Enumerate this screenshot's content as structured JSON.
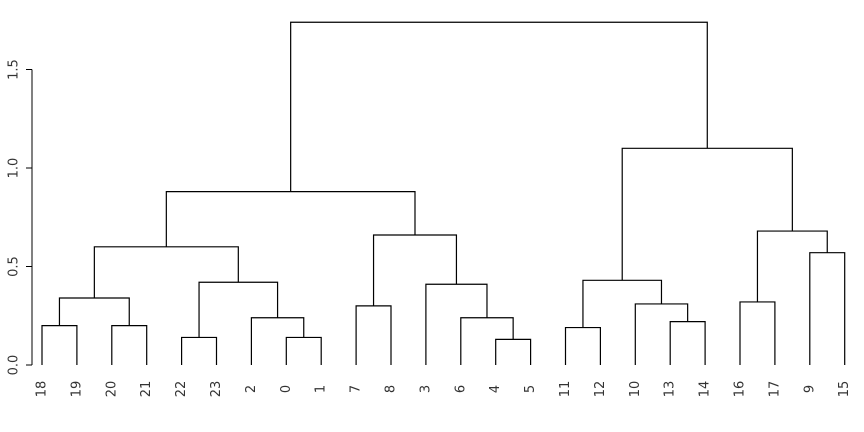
{
  "chart_data": {
    "type": "dendrogram",
    "leaf_order": [
      "18",
      "19",
      "20",
      "21",
      "22",
      "23",
      "2",
      "0",
      "1",
      "7",
      "8",
      "3",
      "6",
      "4",
      "5",
      "11",
      "12",
      "10",
      "13",
      "14",
      "16",
      "17",
      "9",
      "15"
    ],
    "merges": [
      {
        "a": "leaf:18",
        "b": "leaf:19",
        "height": 0.2
      },
      {
        "a": "leaf:20",
        "b": "leaf:21",
        "height": 0.2
      },
      {
        "a": "merge:0",
        "b": "merge:1",
        "height": 0.34
      },
      {
        "a": "leaf:22",
        "b": "leaf:23",
        "height": 0.14
      },
      {
        "a": "leaf:0",
        "b": "leaf:1",
        "height": 0.14
      },
      {
        "a": "leaf:2",
        "b": "merge:4",
        "height": 0.24
      },
      {
        "a": "merge:5",
        "b": "merge:3",
        "height": 0.42
      },
      {
        "a": "merge:2",
        "b": "merge:6",
        "height": 0.6
      },
      {
        "a": "leaf:7",
        "b": "leaf:8",
        "height": 0.3
      },
      {
        "a": "leaf:4",
        "b": "leaf:5",
        "height": 0.13
      },
      {
        "a": "leaf:6",
        "b": "merge:9",
        "height": 0.24
      },
      {
        "a": "leaf:3",
        "b": "merge:10",
        "height": 0.41
      },
      {
        "a": "merge:8",
        "b": "merge:11",
        "height": 0.66
      },
      {
        "a": "merge:7",
        "b": "merge:12",
        "height": 0.88
      },
      {
        "a": "leaf:11",
        "b": "leaf:12",
        "height": 0.19
      },
      {
        "a": "leaf:13",
        "b": "leaf:14",
        "height": 0.22
      },
      {
        "a": "leaf:10",
        "b": "merge:15",
        "height": 0.31
      },
      {
        "a": "merge:14",
        "b": "merge:16",
        "height": 0.43
      },
      {
        "a": "leaf:16",
        "b": "leaf:17",
        "height": 0.32
      },
      {
        "a": "leaf:9",
        "b": "leaf:15",
        "height": 0.57
      },
      {
        "a": "merge:18",
        "b": "merge:19",
        "height": 0.68
      },
      {
        "a": "merge:17",
        "b": "merge:20",
        "height": 1.1
      },
      {
        "a": "merge:13",
        "b": "merge:21",
        "height": 1.74
      }
    ],
    "y_ticks": [
      {
        "value": 0.0,
        "label": "0.0"
      },
      {
        "value": 0.5,
        "label": "0.5"
      },
      {
        "value": 1.0,
        "label": "1.0"
      },
      {
        "value": 1.5,
        "label": "1.5"
      }
    ],
    "ylim": [
      0,
      1.75
    ],
    "title": "",
    "xlabel": "",
    "ylabel": "",
    "grid": false,
    "legend": "none"
  }
}
